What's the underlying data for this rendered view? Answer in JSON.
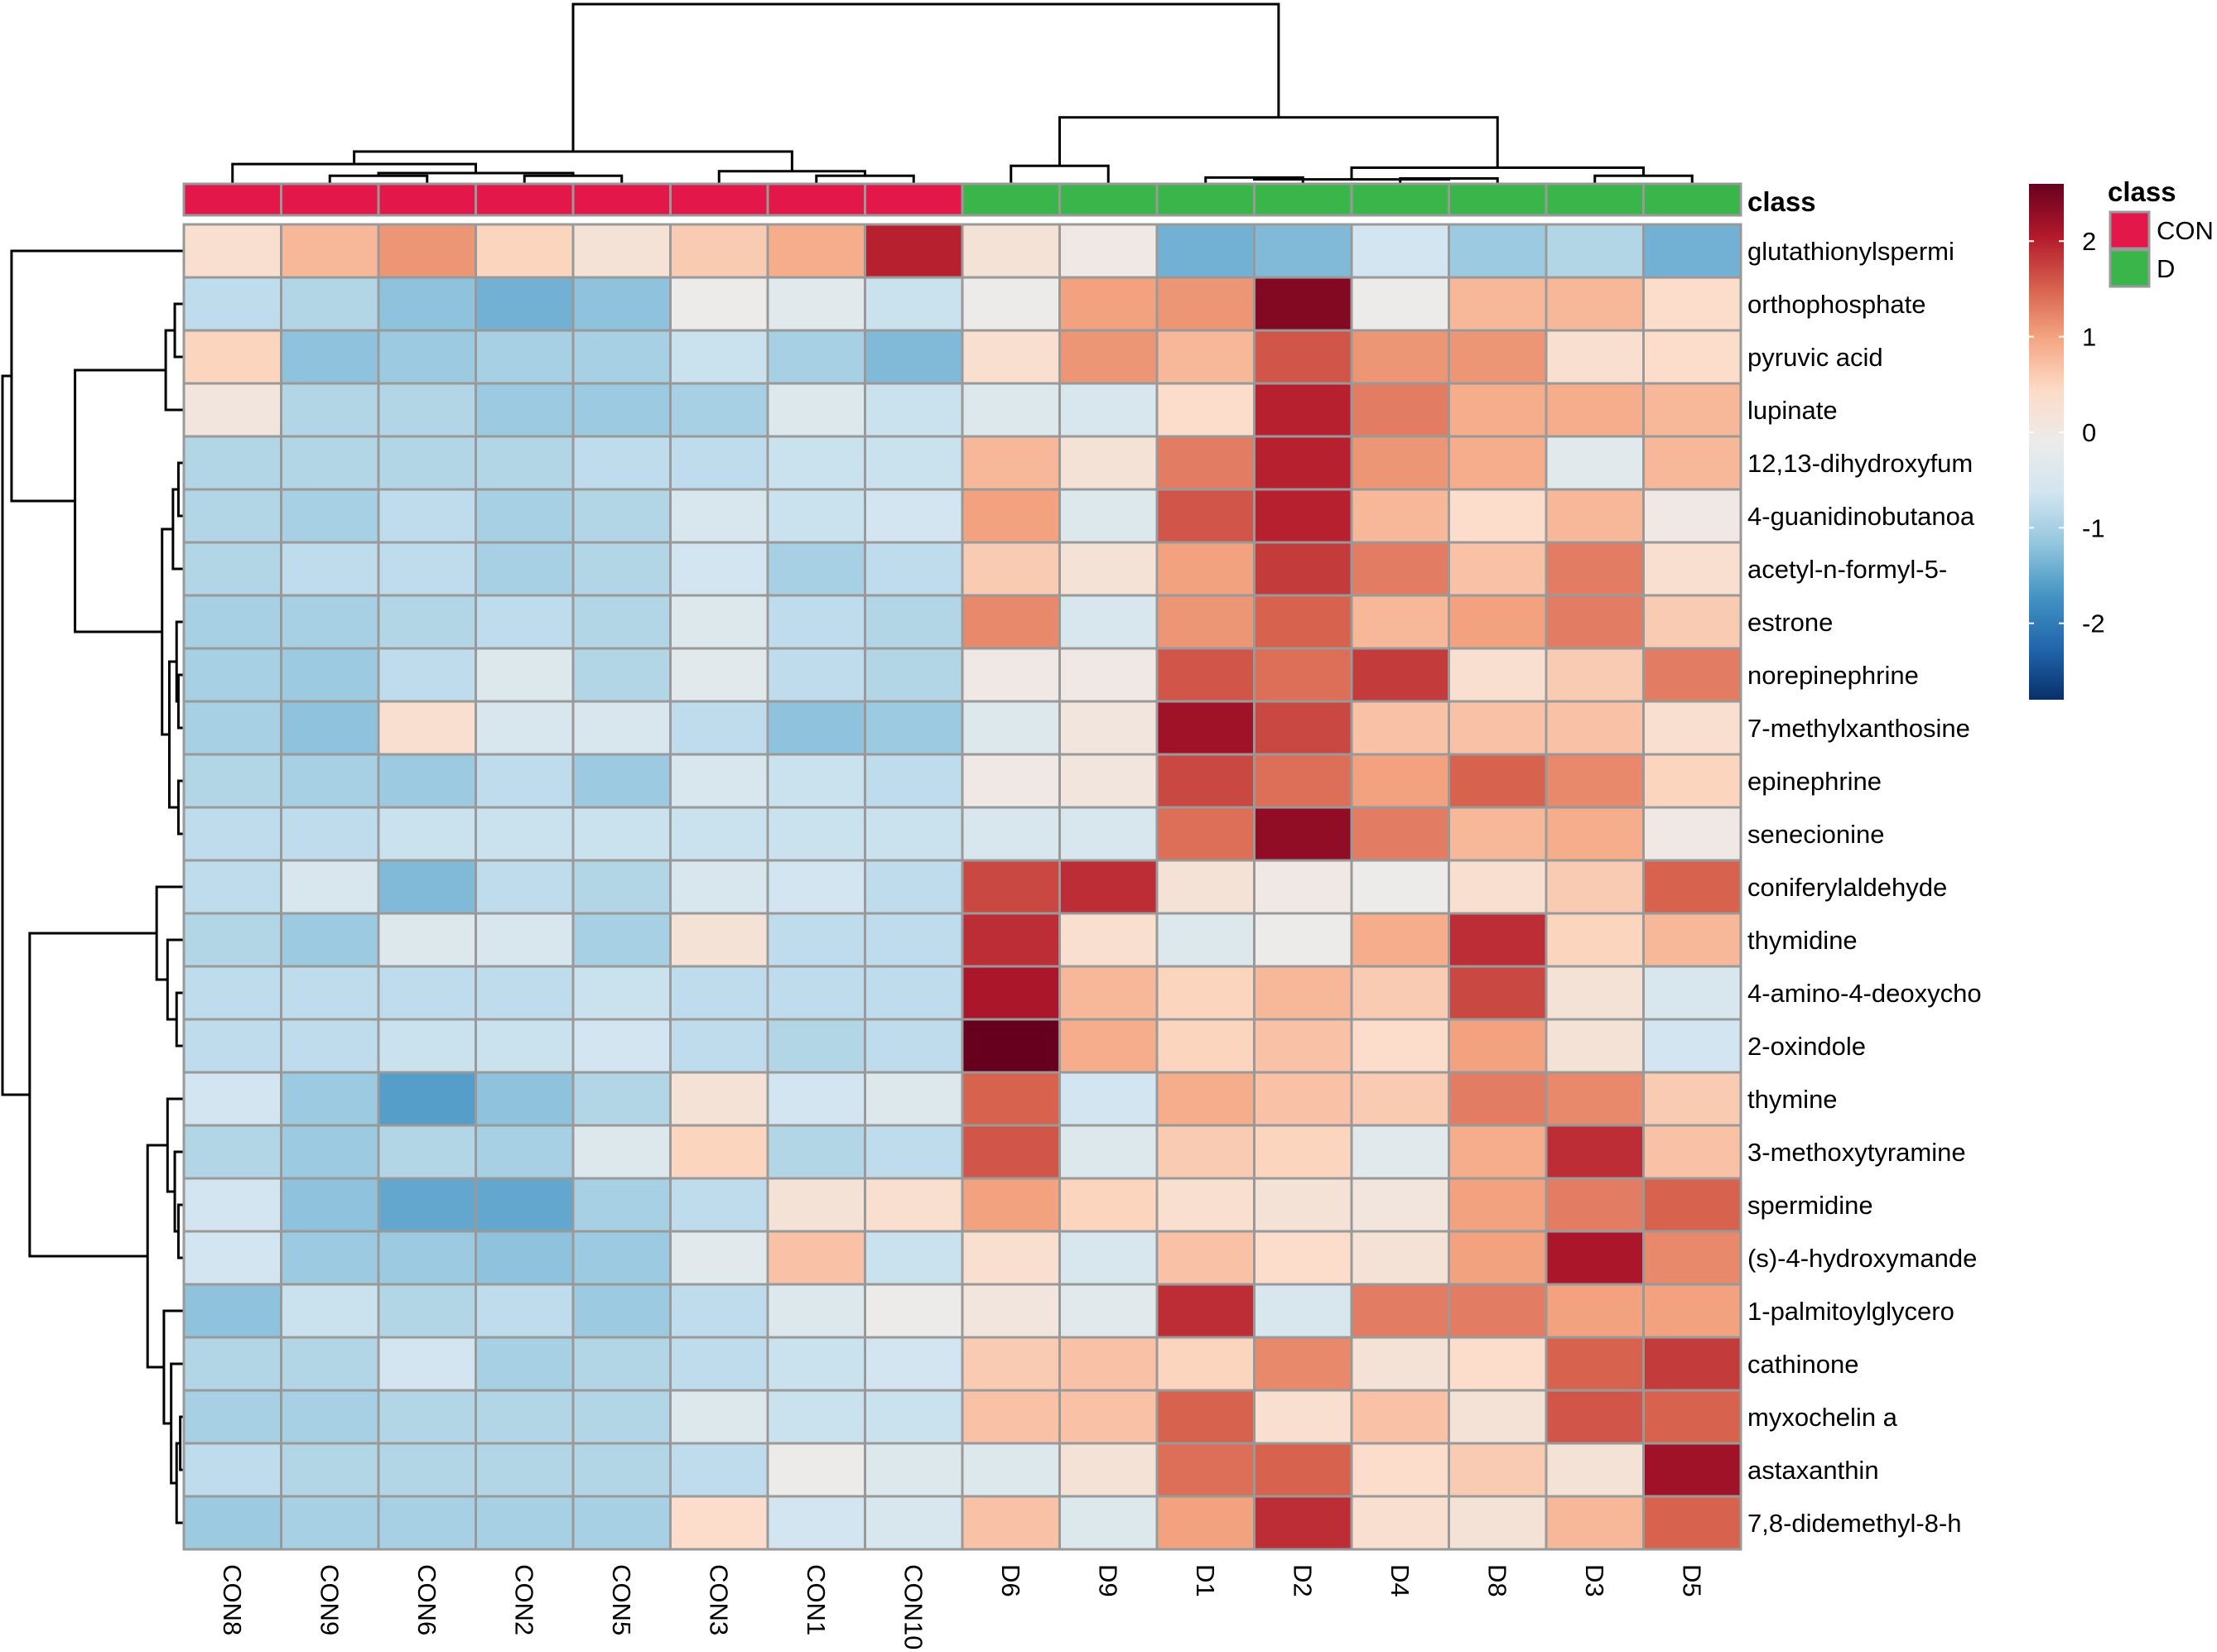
{
  "chart_data": {
    "type": "heatmap",
    "title": "",
    "xlabel": "",
    "ylabel": "",
    "columns": [
      "CON8",
      "CON9",
      "CON6",
      "CON2",
      "CON5",
      "CON3",
      "CON1",
      "CON10",
      "D6",
      "D9",
      "D1",
      "D2",
      "D4",
      "D8",
      "D3",
      "D5"
    ],
    "column_class": [
      "CON",
      "CON",
      "CON",
      "CON",
      "CON",
      "CON",
      "CON",
      "CON",
      "D",
      "D",
      "D",
      "D",
      "D",
      "D",
      "D",
      "D"
    ],
    "rows": [
      "glutathionylspermi",
      "orthophosphate",
      "pyruvic acid",
      "lupinate",
      "12,13-dihydroxyfum",
      "4-guanidinobutanoa",
      "acetyl-n-formyl-5-",
      "estrone",
      "norepinephrine",
      "7-methylxanthosine",
      "epinephrine",
      "senecionine",
      "coniferylaldehyde",
      "thymidine",
      "4-amino-4-deoxycho",
      "2-oxindole",
      "thymine",
      "3-methoxytyramine",
      "spermidine",
      "(s)-4-hydroxymande",
      "1-palmitoylglycero",
      "cathinone",
      "myxochelin a",
      "astaxanthin",
      "7,8-didemethyl-8-h"
    ],
    "values": [
      [
        0.3,
        0.8,
        1.1,
        0.5,
        0.2,
        0.6,
        0.9,
        2.0,
        0.2,
        0.0,
        -1.4,
        -1.3,
        -0.6,
        -1.1,
        -0.9,
        -1.4
      ],
      [
        -0.8,
        -0.9,
        -1.2,
        -1.4,
        -1.2,
        -0.1,
        -0.3,
        -0.7,
        -0.1,
        1.0,
        1.1,
        2.4,
        -0.1,
        0.8,
        0.8,
        0.4
      ],
      [
        0.5,
        -1.2,
        -1.1,
        -1.0,
        -1.0,
        -0.7,
        -1.0,
        -1.3,
        0.3,
        1.1,
        0.8,
        1.6,
        1.1,
        1.1,
        0.3,
        0.4
      ],
      [
        0.1,
        -0.9,
        -0.9,
        -1.1,
        -1.1,
        -1.0,
        -0.4,
        -0.7,
        -0.4,
        -0.5,
        0.4,
        2.0,
        1.3,
        0.9,
        0.9,
        0.8
      ],
      [
        -0.9,
        -0.9,
        -0.9,
        -0.9,
        -0.8,
        -0.8,
        -0.7,
        -0.7,
        0.8,
        0.2,
        1.3,
        2.0,
        1.1,
        0.9,
        -0.3,
        0.8
      ],
      [
        -0.9,
        -1.0,
        -0.8,
        -1.0,
        -0.9,
        -0.5,
        -0.7,
        -0.6,
        1.0,
        -0.4,
        1.6,
        2.0,
        0.8,
        0.4,
        0.8,
        0.0
      ],
      [
        -0.9,
        -0.8,
        -0.8,
        -1.0,
        -0.9,
        -0.6,
        -1.0,
        -0.8,
        0.6,
        0.2,
        1.0,
        1.8,
        1.3,
        0.7,
        1.3,
        0.3
      ],
      [
        -1.0,
        -1.0,
        -0.9,
        -0.8,
        -0.9,
        -0.4,
        -0.8,
        -0.9,
        1.2,
        -0.5,
        1.1,
        1.5,
        0.8,
        1.0,
        1.3,
        0.6
      ],
      [
        -1.0,
        -1.1,
        -0.8,
        -0.4,
        -0.9,
        -0.3,
        -0.8,
        -0.9,
        0.0,
        0.0,
        1.6,
        1.4,
        1.8,
        0.3,
        0.6,
        1.3
      ],
      [
        -1.0,
        -1.2,
        0.3,
        -0.5,
        -0.5,
        -0.8,
        -1.2,
        -1.1,
        -0.4,
        0.1,
        2.2,
        1.7,
        0.7,
        0.7,
        0.7,
        0.3
      ],
      [
        -0.9,
        -1.0,
        -1.1,
        -0.8,
        -1.1,
        -0.5,
        -0.7,
        -0.8,
        0.0,
        0.1,
        1.7,
        1.4,
        1.0,
        1.5,
        1.2,
        0.5
      ],
      [
        -0.8,
        -0.8,
        -0.7,
        -0.7,
        -0.7,
        -0.7,
        -0.7,
        -0.7,
        -0.5,
        -0.5,
        1.4,
        2.3,
        1.3,
        0.8,
        0.9,
        0.0
      ],
      [
        -0.8,
        -0.5,
        -1.3,
        -0.8,
        -0.9,
        -0.5,
        -0.6,
        -0.8,
        1.7,
        1.9,
        0.2,
        0.0,
        -0.1,
        0.3,
        0.6,
        1.5
      ],
      [
        -0.9,
        -1.1,
        -0.4,
        -0.5,
        -1.0,
        0.2,
        -0.8,
        -0.8,
        1.9,
        0.3,
        -0.4,
        -0.1,
        0.9,
        1.9,
        0.5,
        0.8
      ],
      [
        -0.8,
        -0.8,
        -0.8,
        -0.8,
        -0.7,
        -0.8,
        -0.8,
        -0.8,
        2.1,
        0.8,
        0.5,
        0.8,
        0.6,
        1.7,
        0.2,
        -0.5
      ],
      [
        -0.8,
        -0.8,
        -0.7,
        -0.7,
        -0.6,
        -0.8,
        -0.9,
        -0.8,
        2.6,
        0.9,
        0.5,
        0.7,
        0.4,
        1.0,
        0.2,
        -0.6
      ],
      [
        -0.6,
        -1.1,
        -1.6,
        -1.2,
        -0.9,
        0.2,
        -0.6,
        -0.4,
        1.5,
        -0.6,
        0.9,
        0.7,
        0.6,
        1.3,
        1.2,
        0.6
      ],
      [
        -0.9,
        -1.1,
        -0.9,
        -1.0,
        -0.4,
        0.5,
        -0.9,
        -0.8,
        1.6,
        -0.4,
        0.6,
        0.5,
        -0.3,
        0.9,
        1.9,
        0.7
      ],
      [
        -0.6,
        -1.2,
        -1.5,
        -1.5,
        -1.0,
        -0.8,
        0.2,
        0.3,
        1.0,
        0.5,
        0.3,
        0.2,
        0.1,
        1.0,
        1.3,
        1.5
      ],
      [
        -0.6,
        -1.1,
        -1.1,
        -1.2,
        -1.1,
        -0.3,
        0.7,
        -0.7,
        0.3,
        -0.5,
        0.7,
        0.4,
        0.2,
        1.0,
        2.1,
        1.2
      ],
      [
        -1.2,
        -0.7,
        -0.9,
        -0.8,
        -1.1,
        -0.8,
        -0.4,
        -0.1,
        0.1,
        -0.3,
        1.9,
        -0.5,
        1.3,
        1.3,
        1.0,
        1.0
      ],
      [
        -0.9,
        -0.9,
        -0.6,
        -1.0,
        -0.9,
        -0.8,
        -0.7,
        -0.6,
        0.6,
        0.7,
        0.5,
        1.2,
        0.2,
        0.4,
        1.5,
        1.8
      ],
      [
        -1.0,
        -1.0,
        -0.9,
        -0.9,
        -0.9,
        -0.4,
        -0.7,
        -0.7,
        0.7,
        0.7,
        1.5,
        0.3,
        0.7,
        0.2,
        1.6,
        1.5
      ],
      [
        -0.8,
        -0.9,
        -0.9,
        -0.9,
        -0.9,
        -0.8,
        -0.1,
        -0.4,
        -0.4,
        0.2,
        1.4,
        1.5,
        0.4,
        0.6,
        0.2,
        2.2
      ],
      [
        -1.1,
        -1.0,
        -1.0,
        -1.0,
        -1.0,
        0.4,
        -0.6,
        -0.5,
        0.7,
        -0.4,
        1.0,
        1.9,
        0.3,
        0.2,
        0.8,
        1.5
      ]
    ],
    "color_scale": {
      "min": -2.8,
      "max": 2.6,
      "ticks": [
        -2,
        -1,
        0,
        1,
        2
      ],
      "colors": [
        "#08306b",
        "#2166ac",
        "#4393c3",
        "#92c5de",
        "#d1e5f0",
        "#ecebea",
        "#fddbc7",
        "#f4a582",
        "#d6604d",
        "#b2182b",
        "#67001f"
      ]
    },
    "legend": {
      "title": "class",
      "entries": [
        {
          "label": "CON",
          "color": "#e3174a"
        },
        {
          "label": "D",
          "color": "#3ab54a"
        }
      ]
    },
    "annotation_label": "class",
    "cell_border_color": "#999999"
  }
}
